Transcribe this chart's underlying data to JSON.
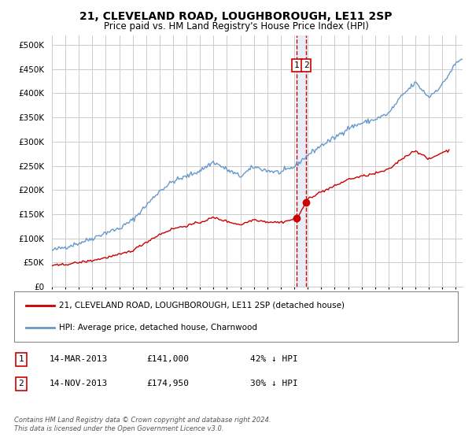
{
  "title": "21, CLEVELAND ROAD, LOUGHBOROUGH, LE11 2SP",
  "subtitle": "Price paid vs. HM Land Registry's House Price Index (HPI)",
  "legend_label_red": "21, CLEVELAND ROAD, LOUGHBOROUGH, LE11 2SP (detached house)",
  "legend_label_blue": "HPI: Average price, detached house, Charnwood",
  "annotation1_label": "1",
  "annotation1_date": "14-MAR-2013",
  "annotation1_price": "£141,000",
  "annotation1_hpi": "42% ↓ HPI",
  "annotation1_year": 2013.2,
  "annotation1_value": 141000,
  "annotation2_label": "2",
  "annotation2_date": "14-NOV-2013",
  "annotation2_price": "£174,950",
  "annotation2_hpi": "30% ↓ HPI",
  "annotation2_year": 2013.88,
  "annotation2_value": 174950,
  "footer": "Contains HM Land Registry data © Crown copyright and database right 2024.\nThis data is licensed under the Open Government Licence v3.0.",
  "ylim": [
    0,
    520000
  ],
  "xlim_start": 1995,
  "xlim_end": 2025.5,
  "red_color": "#cc0000",
  "blue_color": "#6699cc",
  "background_color": "#ffffff",
  "grid_color": "#cccccc",
  "annotation_box_color": "#cc0000",
  "shading_color": "#dde8f5"
}
